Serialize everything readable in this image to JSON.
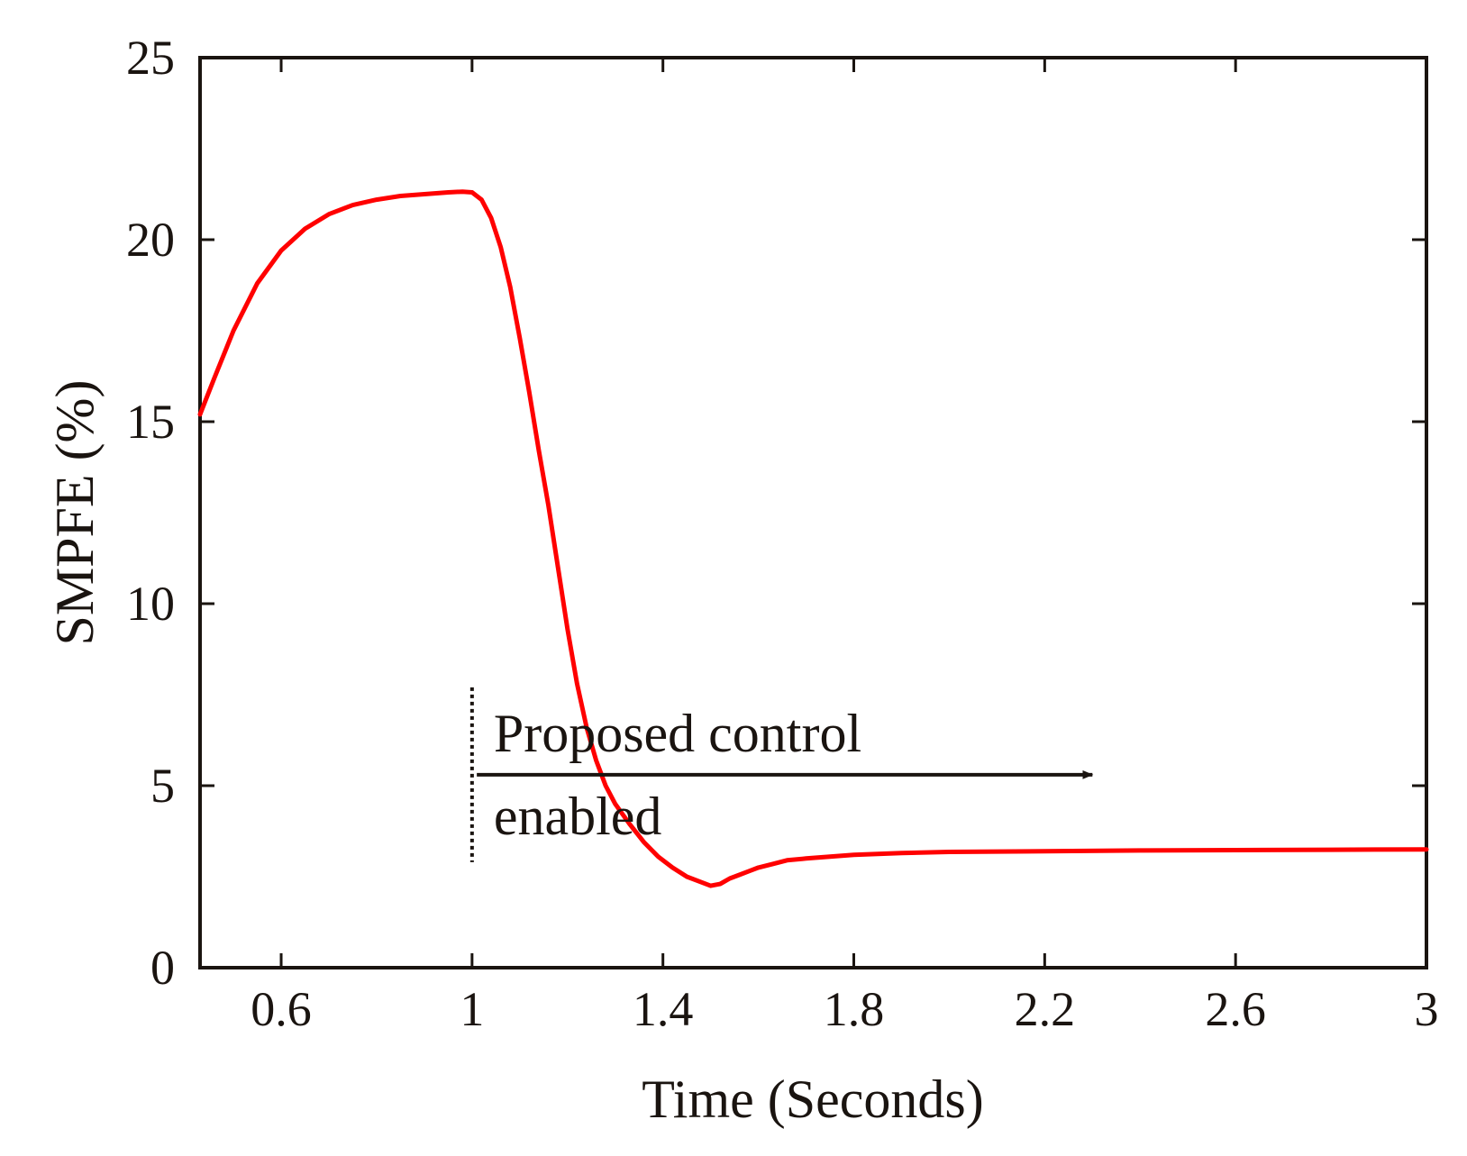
{
  "chart_data": {
    "type": "line",
    "title": "",
    "xlabel": "Time (Seconds)",
    "ylabel": "SMPFE (%)",
    "xlim": [
      0.43,
      3.0
    ],
    "ylim": [
      0,
      25
    ],
    "xticks": [
      0.6,
      1.0,
      1.4,
      1.8,
      2.2,
      2.6,
      3.0
    ],
    "xtick_labels": [
      "0.6",
      "1",
      "1.4",
      "1.8",
      "2.2",
      "2.6",
      "3"
    ],
    "yticks": [
      0,
      5,
      10,
      15,
      20,
      25
    ],
    "ytick_labels": [
      "0",
      "5",
      "10",
      "15",
      "20",
      "25"
    ],
    "grid": false,
    "series": [
      {
        "name": "SMPFE",
        "color": "#ff0000",
        "x": [
          0.43,
          0.46,
          0.5,
          0.55,
          0.6,
          0.65,
          0.7,
          0.75,
          0.8,
          0.85,
          0.9,
          0.95,
          0.98,
          1.0,
          1.02,
          1.04,
          1.06,
          1.08,
          1.1,
          1.12,
          1.14,
          1.16,
          1.18,
          1.2,
          1.22,
          1.24,
          1.26,
          1.28,
          1.3,
          1.33,
          1.36,
          1.39,
          1.42,
          1.45,
          1.48,
          1.5,
          1.52,
          1.54,
          1.56,
          1.58,
          1.6,
          1.63,
          1.66,
          1.7,
          1.75,
          1.8,
          1.9,
          2.0,
          2.2,
          2.4,
          2.6,
          2.8,
          3.0
        ],
        "y": [
          15.2,
          16.2,
          17.5,
          18.8,
          19.7,
          20.3,
          20.7,
          20.95,
          21.1,
          21.2,
          21.25,
          21.3,
          21.32,
          21.3,
          21.1,
          20.6,
          19.8,
          18.7,
          17.3,
          15.8,
          14.2,
          12.7,
          11.0,
          9.3,
          7.8,
          6.6,
          5.7,
          5.0,
          4.5,
          3.95,
          3.45,
          3.05,
          2.75,
          2.5,
          2.35,
          2.25,
          2.3,
          2.45,
          2.55,
          2.65,
          2.75,
          2.85,
          2.95,
          3.0,
          3.05,
          3.1,
          3.15,
          3.18,
          3.2,
          3.22,
          3.23,
          3.24,
          3.25
        ]
      }
    ],
    "annotations": [
      {
        "lines": [
          "Proposed control",
          "enabled"
        ],
        "marker_x": 1.0,
        "marker_y_range": [
          2.9,
          7.7
        ],
        "arrow_from_x": 1.01,
        "arrow_to_x": 2.3,
        "arrow_y": 5.3
      }
    ]
  }
}
